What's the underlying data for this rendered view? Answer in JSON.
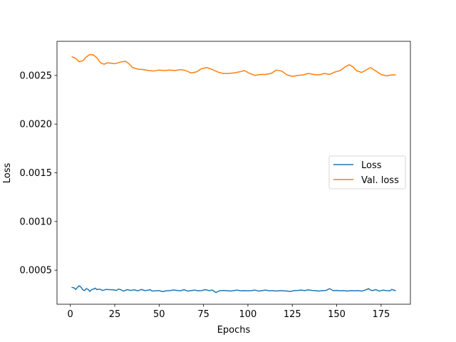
{
  "chart_data": {
    "type": "line",
    "title": "",
    "xlabel": "Epochs",
    "ylabel": "Loss",
    "xlim": [
      -7.5,
      191.5
    ],
    "ylim": [
      0.00015,
      0.00285
    ],
    "xticks": [
      0,
      25,
      50,
      75,
      100,
      125,
      150,
      175
    ],
    "xtick_labels": [
      "0",
      "25",
      "50",
      "75",
      "100",
      "125",
      "150",
      "175"
    ],
    "yticks": [
      0.0005,
      0.001,
      0.0015,
      0.002,
      0.0025
    ],
    "ytick_labels": [
      "0.0005",
      "0.0010",
      "0.0015",
      "0.0020",
      "0.0025"
    ],
    "grid": false,
    "legend_position": "center-right",
    "series": [
      {
        "name": "Loss",
        "color": "#1f77b4",
        "points": [
          [
            1,
            0.000322
          ],
          [
            2,
            0.00032
          ],
          [
            3,
            0.000302
          ],
          [
            4,
            0.000322
          ],
          [
            5,
            0.00034
          ],
          [
            6,
            0.000325
          ],
          [
            7,
            0.0003
          ],
          [
            8,
            0.00029
          ],
          [
            9,
            0.00031
          ],
          [
            10,
            0.000303
          ],
          [
            11,
            0.000282
          ],
          [
            12,
            0.0003
          ],
          [
            13,
            0.000305
          ],
          [
            14,
            0.000315
          ],
          [
            15,
            0.0003
          ],
          [
            16,
            0.000305
          ],
          [
            17,
            0.000302
          ],
          [
            18,
            0.000292
          ],
          [
            19,
            0.000295
          ],
          [
            20,
            0.000302
          ],
          [
            22,
            0.0003
          ],
          [
            24,
            0.000298
          ],
          [
            26,
            0.000292
          ],
          [
            27,
            0.000305
          ],
          [
            28,
            0.000302
          ],
          [
            30,
            0.000285
          ],
          [
            32,
            0.0003
          ],
          [
            34,
            0.000292
          ],
          [
            36,
            0.000298
          ],
          [
            38,
            0.000288
          ],
          [
            40,
            0.000302
          ],
          [
            42,
            0.00029
          ],
          [
            44,
            0.000295
          ],
          [
            45,
            0.0003
          ],
          [
            46,
            0.000285
          ],
          [
            48,
            0.000288
          ],
          [
            50,
            0.00029
          ],
          [
            52,
            0.00028
          ],
          [
            54,
            0.000288
          ],
          [
            56,
            0.00029
          ],
          [
            58,
            0.000296
          ],
          [
            60,
            0.000292
          ],
          [
            62,
            0.000288
          ],
          [
            64,
            0.0003
          ],
          [
            66,
            0.000285
          ],
          [
            68,
            0.00029
          ],
          [
            70,
            0.000295
          ],
          [
            72,
            0.000288
          ],
          [
            74,
            0.00029
          ],
          [
            76,
            0.0003
          ],
          [
            78,
            0.00029
          ],
          [
            80,
            0.000295
          ],
          [
            82,
            0.00027
          ],
          [
            84,
            0.000288
          ],
          [
            86,
            0.000292
          ],
          [
            88,
            0.00029
          ],
          [
            90,
            0.000285
          ],
          [
            92,
            0.00029
          ],
          [
            94,
            0.000295
          ],
          [
            96,
            0.000288
          ],
          [
            98,
            0.00029
          ],
          [
            100,
            0.000288
          ],
          [
            102,
            0.00029
          ],
          [
            104,
            0.000295
          ],
          [
            106,
            0.000285
          ],
          [
            108,
            0.00029
          ],
          [
            110,
            0.000295
          ],
          [
            112,
            0.000288
          ],
          [
            114,
            0.00029
          ],
          [
            116,
            0.000285
          ],
          [
            118,
            0.00029
          ],
          [
            120,
            0.000288
          ],
          [
            122,
            0.000285
          ],
          [
            124,
            0.000282
          ],
          [
            126,
            0.00029
          ],
          [
            128,
            0.000292
          ],
          [
            130,
            0.000295
          ],
          [
            132,
            0.00029
          ],
          [
            134,
            0.000298
          ],
          [
            136,
            0.000292
          ],
          [
            138,
            0.00029
          ],
          [
            140,
            0.000285
          ],
          [
            142,
            0.00029
          ],
          [
            144,
            0.000292
          ],
          [
            146,
            0.00031
          ],
          [
            148,
            0.00029
          ],
          [
            150,
            0.000292
          ],
          [
            152,
            0.000288
          ],
          [
            154,
            0.00029
          ],
          [
            156,
            0.000285
          ],
          [
            158,
            0.00029
          ],
          [
            160,
            0.000288
          ],
          [
            162,
            0.00029
          ],
          [
            164,
            0.000285
          ],
          [
            166,
            0.000295
          ],
          [
            168,
            0.00031
          ],
          [
            169,
            0.000295
          ],
          [
            170,
            0.00029
          ],
          [
            172,
            0.0003
          ],
          [
            174,
            0.000285
          ],
          [
            176,
            0.000295
          ],
          [
            178,
            0.00029
          ],
          [
            180,
            0.000288
          ],
          [
            181,
            0.000302
          ],
          [
            183,
            0.00029
          ]
        ]
      },
      {
        "name": "Val. loss",
        "color": "#ff7f0e",
        "points": [
          [
            1,
            0.00269
          ],
          [
            3,
            0.002675
          ],
          [
            5,
            0.00264
          ],
          [
            7,
            0.00265
          ],
          [
            9,
            0.00269
          ],
          [
            11,
            0.002715
          ],
          [
            13,
            0.00271
          ],
          [
            15,
            0.00268
          ],
          [
            17,
            0.00263
          ],
          [
            19,
            0.002615
          ],
          [
            21,
            0.00263
          ],
          [
            23,
            0.002625
          ],
          [
            25,
            0.00262
          ],
          [
            27,
            0.00263
          ],
          [
            29,
            0.00264
          ],
          [
            31,
            0.002645
          ],
          [
            33,
            0.00262
          ],
          [
            35,
            0.00258
          ],
          [
            38,
            0.002565
          ],
          [
            41,
            0.00256
          ],
          [
            44,
            0.00255
          ],
          [
            47,
            0.002545
          ],
          [
            50,
            0.002555
          ],
          [
            53,
            0.00255
          ],
          [
            56,
            0.002555
          ],
          [
            59,
            0.00255
          ],
          [
            62,
            0.00256
          ],
          [
            65,
            0.00255
          ],
          [
            68,
            0.002525
          ],
          [
            71,
            0.002535
          ],
          [
            74,
            0.00257
          ],
          [
            77,
            0.00258
          ],
          [
            80,
            0.00256
          ],
          [
            83,
            0.002535
          ],
          [
            86,
            0.00252
          ],
          [
            89,
            0.00252
          ],
          [
            92,
            0.002525
          ],
          [
            95,
            0.002535
          ],
          [
            98,
            0.00255
          ],
          [
            101,
            0.00252
          ],
          [
            104,
            0.0025
          ],
          [
            107,
            0.00251
          ],
          [
            110,
            0.00251
          ],
          [
            113,
            0.00252
          ],
          [
            116,
            0.002555
          ],
          [
            119,
            0.002545
          ],
          [
            122,
            0.002505
          ],
          [
            125,
            0.00249
          ],
          [
            128,
            0.0025
          ],
          [
            131,
            0.002505
          ],
          [
            134,
            0.00252
          ],
          [
            137,
            0.00251
          ],
          [
            140,
            0.002505
          ],
          [
            143,
            0.00252
          ],
          [
            146,
            0.00251
          ],
          [
            149,
            0.002535
          ],
          [
            152,
            0.00255
          ],
          [
            155,
            0.00259
          ],
          [
            157,
            0.00261
          ],
          [
            159,
            0.00259
          ],
          [
            161,
            0.00255
          ],
          [
            164,
            0.00253
          ],
          [
            167,
            0.00256
          ],
          [
            169,
            0.00258
          ],
          [
            172,
            0.002545
          ],
          [
            175,
            0.00251
          ],
          [
            178,
            0.002495
          ],
          [
            181,
            0.002505
          ],
          [
            183,
            0.002505
          ]
        ]
      }
    ]
  }
}
